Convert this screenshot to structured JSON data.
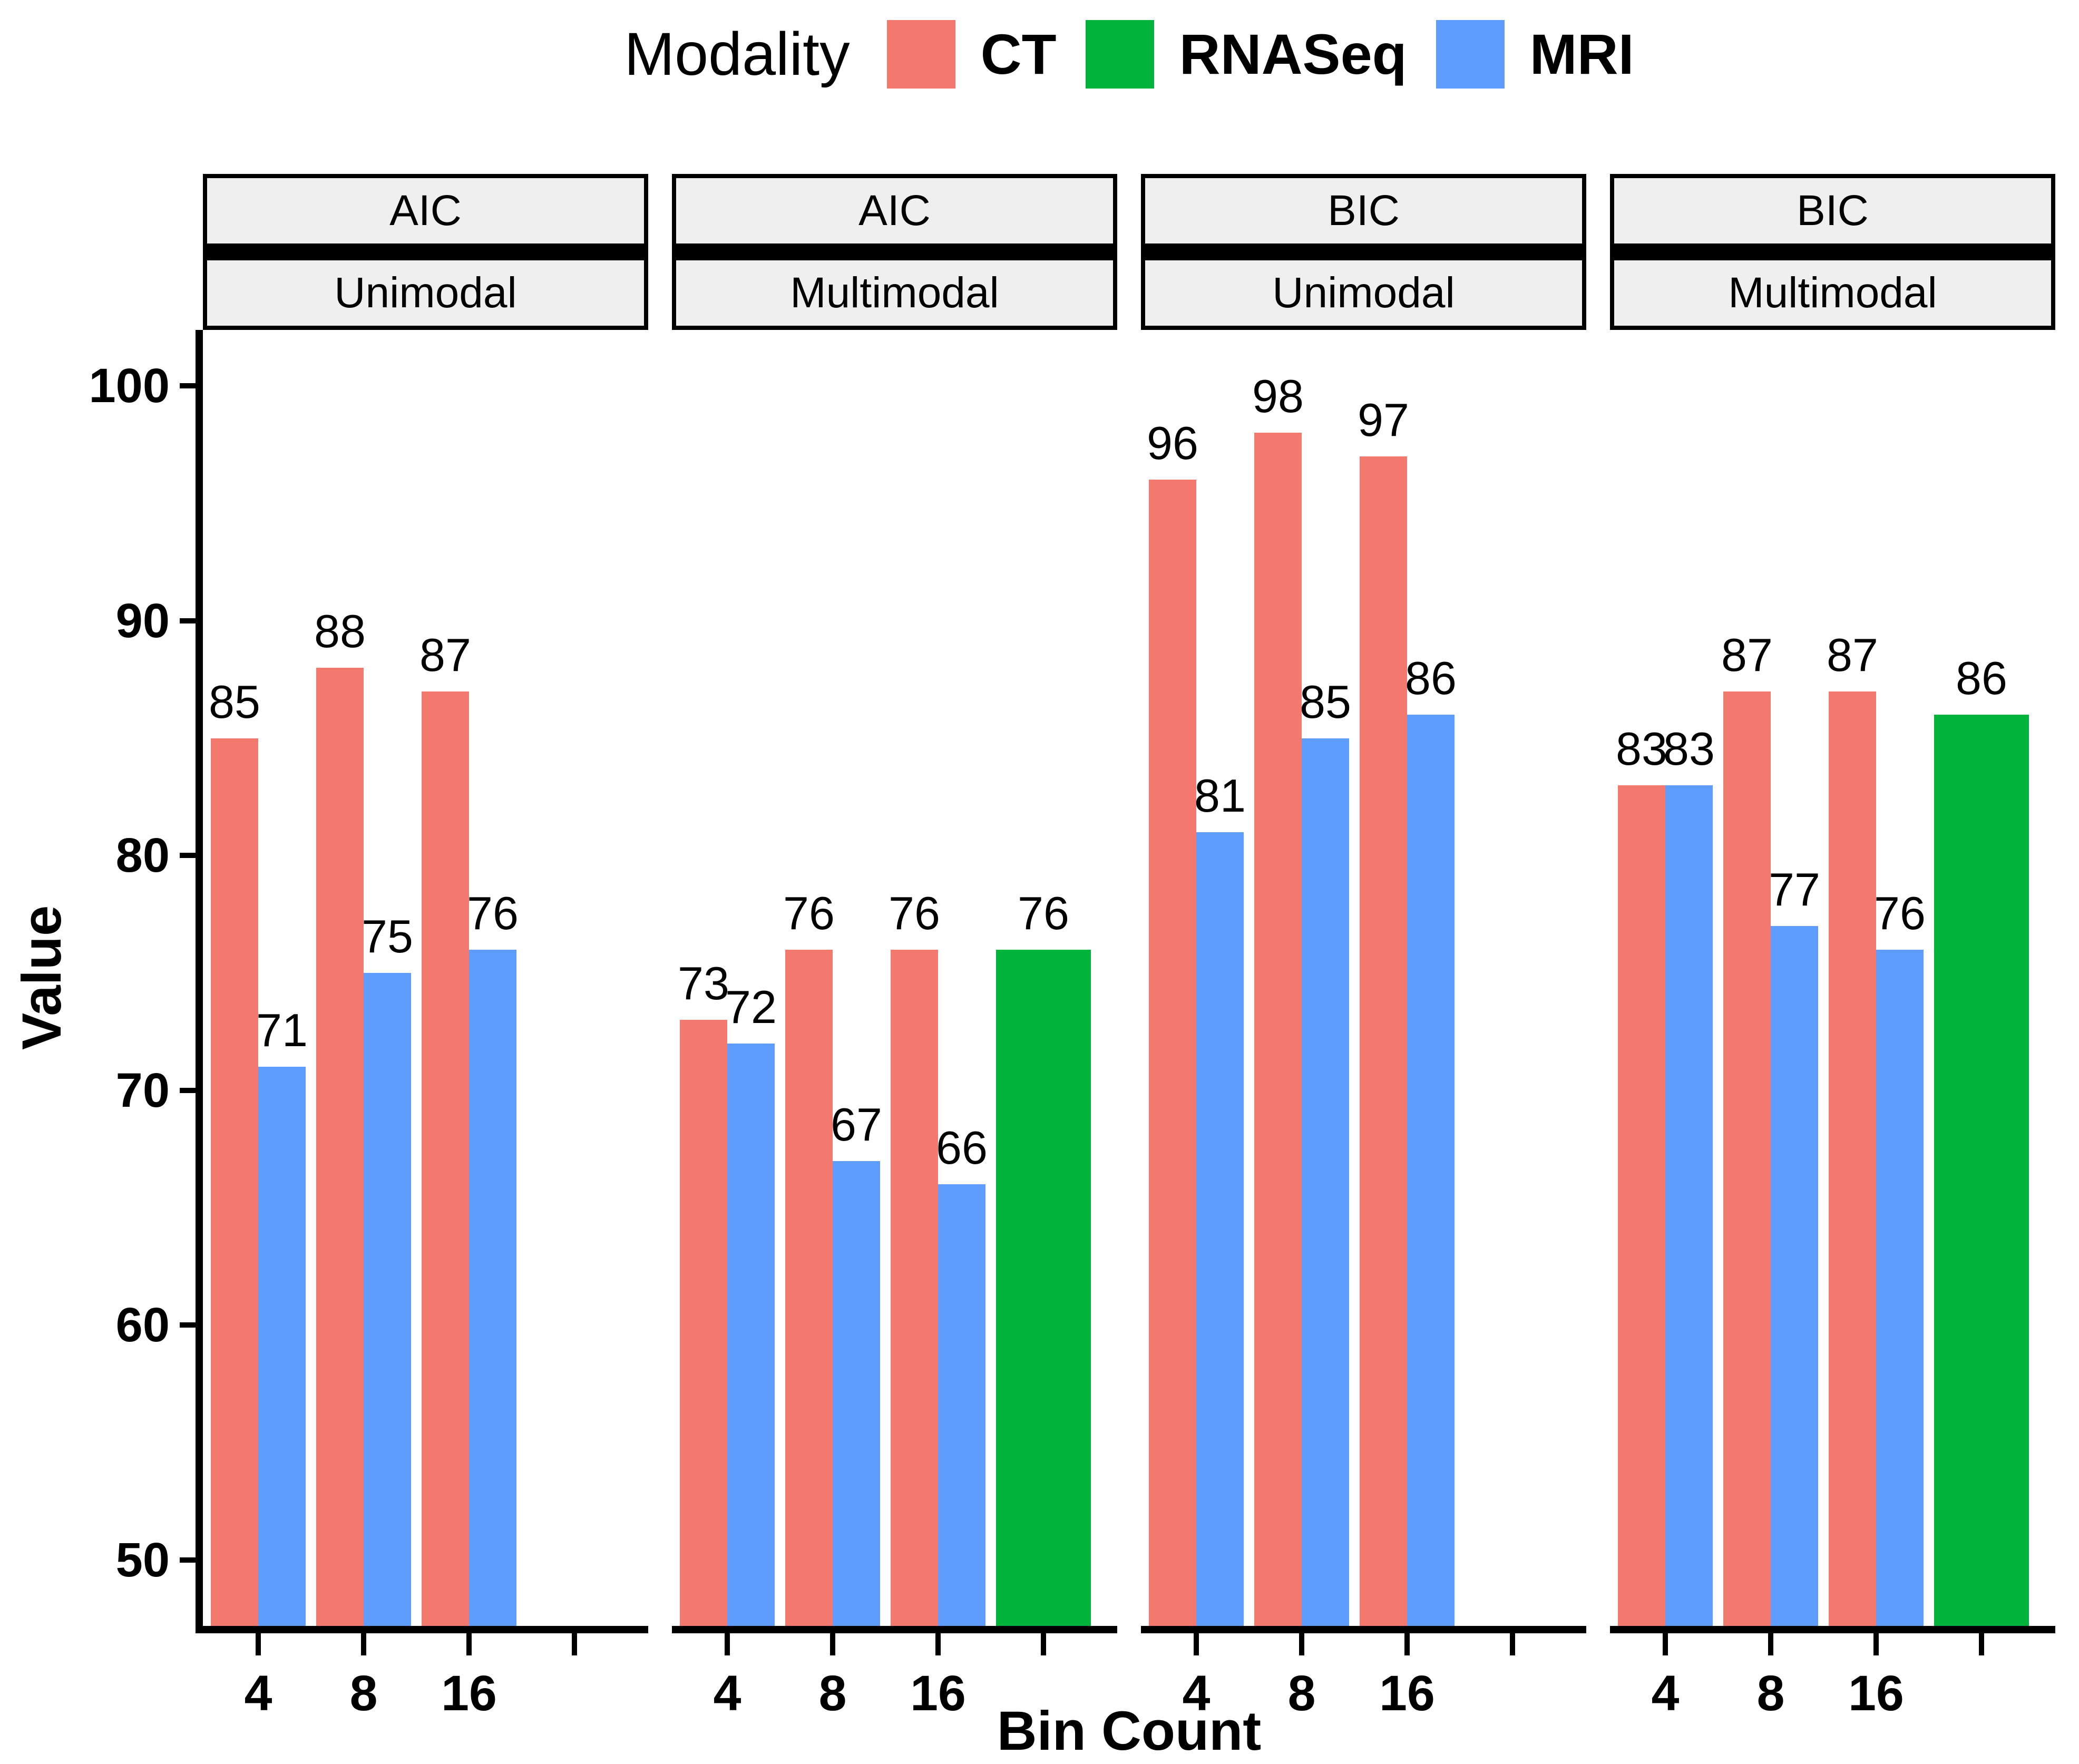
{
  "legend": {
    "title": "Modality",
    "items": [
      {
        "label": "CT",
        "color": "#F3796E"
      },
      {
        "label": "RNASeq",
        "color": "#00B33B"
      },
      {
        "label": "MRI",
        "color": "#5E9CFE"
      }
    ]
  },
  "axes": {
    "y_title": "Value",
    "x_title": "Bin Count",
    "y_ticks": [
      100,
      90,
      80,
      70,
      60,
      50
    ],
    "x_tick_labels": [
      "4",
      "8",
      "16",
      ""
    ]
  },
  "chart_data": {
    "type": "bar",
    "title": "",
    "xlabel": "Bin Count",
    "ylabel": "Value",
    "ylim": [
      50,
      100
    ],
    "y_tick_step": 10,
    "grid": false,
    "legend_position": "top",
    "bar_labels": true,
    "categories": [
      "4",
      "8",
      "16",
      ""
    ],
    "series_colors": {
      "CT": "#F3796E",
      "RNASeq": "#00B33B",
      "MRI": "#5E9CFE"
    },
    "facets": [
      {
        "strip_top": "AIC",
        "strip_bottom": "Unimodal",
        "groups": [
          {
            "x": "4",
            "bars": [
              {
                "series": "CT",
                "value": 85
              },
              {
                "series": "MRI",
                "value": 71
              }
            ]
          },
          {
            "x": "8",
            "bars": [
              {
                "series": "CT",
                "value": 88
              },
              {
                "series": "MRI",
                "value": 75
              }
            ]
          },
          {
            "x": "16",
            "bars": [
              {
                "series": "CT",
                "value": 87
              },
              {
                "series": "MRI",
                "value": 76
              }
            ]
          },
          {
            "x": "",
            "bars": []
          }
        ]
      },
      {
        "strip_top": "AIC",
        "strip_bottom": "Multimodal",
        "groups": [
          {
            "x": "4",
            "bars": [
              {
                "series": "CT",
                "value": 73
              },
              {
                "series": "MRI",
                "value": 72
              }
            ]
          },
          {
            "x": "8",
            "bars": [
              {
                "series": "CT",
                "value": 76
              },
              {
                "series": "MRI",
                "value": 67
              }
            ]
          },
          {
            "x": "16",
            "bars": [
              {
                "series": "CT",
                "value": 76
              },
              {
                "series": "MRI",
                "value": 66
              }
            ]
          },
          {
            "x": "",
            "bars": [
              {
                "series": "RNASeq",
                "value": 76
              }
            ]
          }
        ]
      },
      {
        "strip_top": "BIC",
        "strip_bottom": "Unimodal",
        "groups": [
          {
            "x": "4",
            "bars": [
              {
                "series": "CT",
                "value": 96
              },
              {
                "series": "MRI",
                "value": 81
              }
            ]
          },
          {
            "x": "8",
            "bars": [
              {
                "series": "CT",
                "value": 98
              },
              {
                "series": "MRI",
                "value": 85
              }
            ]
          },
          {
            "x": "16",
            "bars": [
              {
                "series": "CT",
                "value": 97
              },
              {
                "series": "MRI",
                "value": 86
              }
            ]
          },
          {
            "x": "",
            "bars": []
          }
        ]
      },
      {
        "strip_top": "BIC",
        "strip_bottom": "Multimodal",
        "groups": [
          {
            "x": "4",
            "bars": [
              {
                "series": "CT",
                "value": 83
              },
              {
                "series": "MRI",
                "value": 83
              }
            ]
          },
          {
            "x": "8",
            "bars": [
              {
                "series": "CT",
                "value": 87
              },
              {
                "series": "MRI",
                "value": 77
              }
            ]
          },
          {
            "x": "16",
            "bars": [
              {
                "series": "CT",
                "value": 87
              },
              {
                "series": "MRI",
                "value": 76
              }
            ]
          },
          {
            "x": "",
            "bars": [
              {
                "series": "RNASeq",
                "value": 86
              }
            ]
          }
        ]
      }
    ]
  }
}
